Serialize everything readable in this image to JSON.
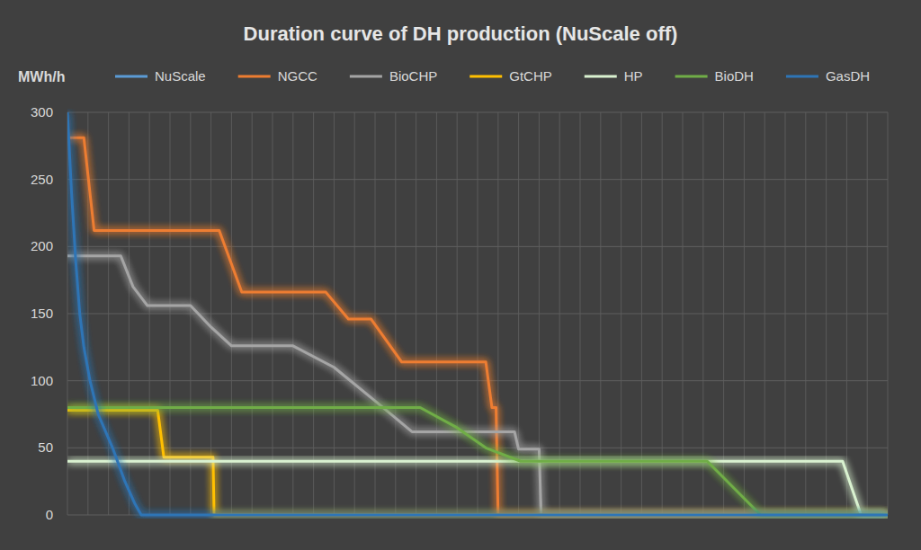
{
  "chart_data": {
    "type": "line",
    "title": "Duration curve of DH production (NuScale off)",
    "y_label": "MWh/h",
    "xlim": [
      0,
      40
    ],
    "xticks": [
      0,
      1,
      2,
      3,
      4,
      5,
      6,
      7,
      8,
      9,
      10,
      11,
      12,
      13,
      14,
      15,
      16,
      17,
      18,
      19,
      20,
      21,
      22,
      23,
      24,
      25,
      26,
      27,
      28,
      29,
      30,
      31,
      32,
      33,
      34,
      35,
      36,
      37,
      38,
      39,
      40
    ],
    "ylim": [
      0,
      300
    ],
    "yticks": [
      0,
      50,
      100,
      150,
      200,
      250,
      300
    ],
    "grid": true,
    "legend": "top",
    "tick_labels": "y",
    "series": [
      {
        "name": "NuScale",
        "color": "#5b9bd5",
        "x": [
          0,
          40
        ],
        "values": [
          0,
          0
        ]
      },
      {
        "name": "NGCC",
        "color": "#ed7d31",
        "x": [
          0,
          0.8,
          1.3,
          7.4,
          8.5,
          12.6,
          13.7,
          14.8,
          16.3,
          20.4,
          20.7,
          20.9,
          21.0,
          40
        ],
        "values": [
          281,
          281,
          212,
          212,
          166,
          166,
          146,
          146,
          114,
          114,
          80,
          80,
          0,
          0
        ]
      },
      {
        "name": "BioCHP",
        "color": "#a5a5a5",
        "x": [
          0,
          2.6,
          3.2,
          3.9,
          6.0,
          7.0,
          8.0,
          11.0,
          13.0,
          15.0,
          16.8,
          21.8,
          22.0,
          23.0,
          23.1,
          40
        ],
        "values": [
          193,
          193,
          170,
          156,
          156,
          140,
          126,
          126,
          110,
          85,
          62,
          62,
          49,
          49,
          0,
          0
        ]
      },
      {
        "name": "GtCHP",
        "color": "#ffc000",
        "x": [
          0,
          4.4,
          4.7,
          7.1,
          7.15,
          40
        ],
        "values": [
          78,
          78,
          43,
          43,
          0,
          0
        ]
      },
      {
        "name": "HP",
        "color": "#d9f2d0",
        "x": [
          0,
          37.8,
          38.7,
          40
        ],
        "values": [
          40,
          40,
          0,
          0
        ]
      },
      {
        "name": "BioDH",
        "color": "#70ad47",
        "x": [
          0,
          17.2,
          19.0,
          20.4,
          22.1,
          31.2,
          33.8,
          40
        ],
        "values": [
          80,
          80,
          65,
          50,
          40,
          40,
          0,
          0
        ]
      },
      {
        "name": "GasDH",
        "color": "#2e75b6",
        "x": [
          0,
          0.2,
          0.4,
          0.6,
          0.8,
          1.1,
          1.5,
          2.2,
          2.8,
          3.3,
          3.6,
          40
        ],
        "values": [
          300,
          240,
          190,
          150,
          125,
          100,
          75,
          50,
          25,
          8,
          0,
          0
        ]
      }
    ]
  }
}
